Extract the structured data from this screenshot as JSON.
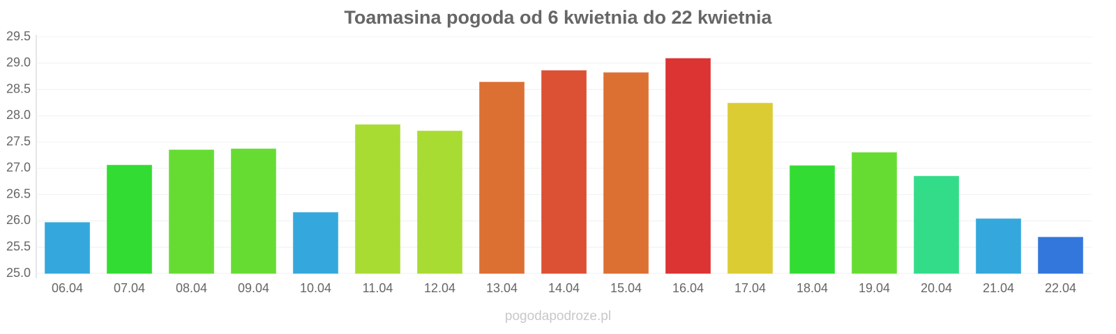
{
  "chart_data": {
    "type": "bar",
    "title": "Toamasina pogoda od 6 kwietnia do 22 kwietnia",
    "categories": [
      "06.04",
      "07.04",
      "08.04",
      "09.04",
      "10.04",
      "11.04",
      "12.04",
      "13.04",
      "14.04",
      "15.04",
      "16.04",
      "17.04",
      "18.04",
      "19.04",
      "20.04",
      "21.04",
      "22.04"
    ],
    "values": [
      25.97,
      27.06,
      27.35,
      27.37,
      26.16,
      27.83,
      27.71,
      28.64,
      28.86,
      28.82,
      29.09,
      28.24,
      27.05,
      27.3,
      26.85,
      26.04,
      25.69
    ],
    "colors": [
      "#34a8dc",
      "#33dc33",
      "#66dc33",
      "#66dc33",
      "#34a8dc",
      "#a9dc33",
      "#a9dc33",
      "#dc7033",
      "#dc5033",
      "#dc7033",
      "#dc3333",
      "#dccc33",
      "#33dc33",
      "#66dc33",
      "#33dc89",
      "#34a8dc",
      "#3377dc"
    ],
    "ylim": [
      25.0,
      29.5
    ],
    "yticks": [
      {
        "value": 25,
        "label": "25.0"
      },
      {
        "value": 25.5,
        "label": "25.5"
      },
      {
        "value": 26,
        "label": "26.0"
      },
      {
        "value": 26.5,
        "label": "26.5"
      },
      {
        "value": 27,
        "label": "27.0"
      },
      {
        "value": 27.5,
        "label": "27.5"
      },
      {
        "value": 28,
        "label": "28.0"
      },
      {
        "value": 28.5,
        "label": "28.5"
      },
      {
        "value": 29,
        "label": "29.0"
      },
      {
        "value": 29.5,
        "label": "29.5"
      }
    ],
    "grid": true,
    "watermark": "pogodapodroze.pl"
  }
}
